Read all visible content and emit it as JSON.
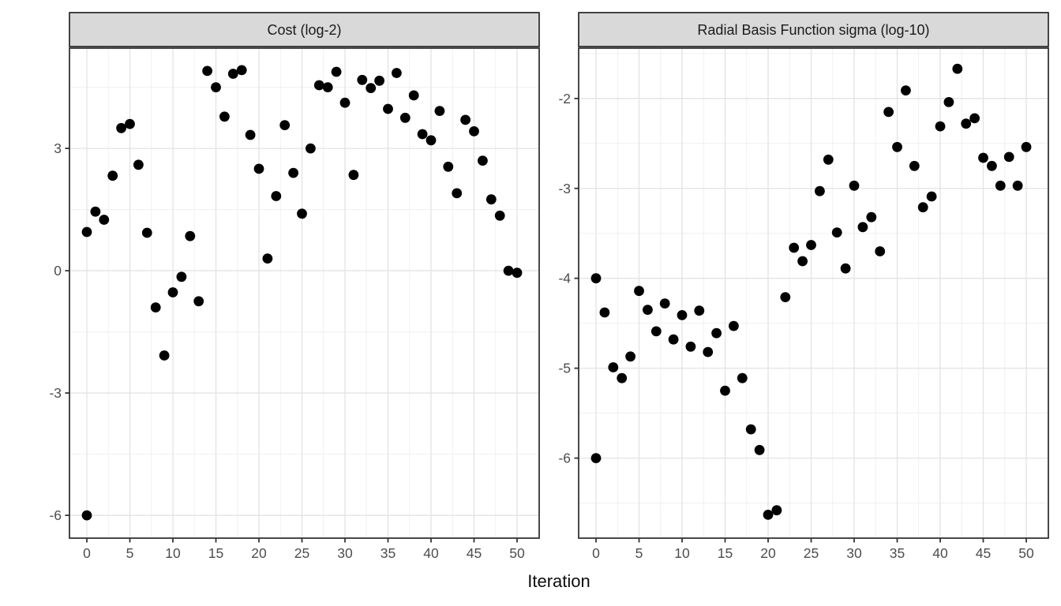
{
  "figure": {
    "xlabel": "Iteration",
    "background": "#ffffff",
    "strip_fill": "#d9d9d9",
    "strip_border": "#1a1a1a",
    "panel_background": "#ffffff",
    "panel_border": "#343434",
    "grid_major_color": "#e3e3e3",
    "grid_minor_color": "#f0f0f0",
    "point_color": "#000000",
    "tick_color": "#333333",
    "tick_label_color": "#4d4d4d",
    "strip_text_color": "#1a1a1a",
    "axis_title_color": "#0d0d0d"
  },
  "chart_data": [
    {
      "type": "scatter",
      "title": "Cost (log-2)",
      "xlabel": "Iteration",
      "ylabel": "",
      "legend": "none",
      "grid": true,
      "x_ticks": [
        0,
        5,
        10,
        15,
        20,
        25,
        30,
        35,
        40,
        45,
        50
      ],
      "y_ticks": [
        3,
        0,
        -3,
        -6
      ],
      "xlim": [
        -2.02,
        52.57
      ],
      "ylim": [
        -6.56,
        5.46
      ],
      "points": [
        [
          0,
          0.95
        ],
        [
          0,
          -6.0
        ],
        [
          1,
          1.45
        ],
        [
          2,
          1.25
        ],
        [
          3,
          2.33
        ],
        [
          4,
          3.5
        ],
        [
          5,
          3.6
        ],
        [
          6,
          2.6
        ],
        [
          7,
          0.93
        ],
        [
          8,
          -0.9
        ],
        [
          9,
          -2.08
        ],
        [
          10,
          -0.53
        ],
        [
          11,
          -0.15
        ],
        [
          12,
          0.85
        ],
        [
          13,
          -0.75
        ],
        [
          14,
          4.9
        ],
        [
          15,
          4.5
        ],
        [
          16,
          3.78
        ],
        [
          17,
          4.83
        ],
        [
          18,
          4.92
        ],
        [
          19,
          3.33
        ],
        [
          20,
          2.5
        ],
        [
          21,
          0.3
        ],
        [
          22,
          1.83
        ],
        [
          23,
          3.57
        ],
        [
          24,
          2.4
        ],
        [
          25,
          1.4
        ],
        [
          26,
          3.0
        ],
        [
          27,
          4.55
        ],
        [
          28,
          4.5
        ],
        [
          29,
          4.88
        ],
        [
          30,
          4.12
        ],
        [
          31,
          2.35
        ],
        [
          32,
          4.68
        ],
        [
          33,
          4.48
        ],
        [
          34,
          4.66
        ],
        [
          35,
          3.97
        ],
        [
          36,
          4.85
        ],
        [
          37,
          3.75
        ],
        [
          38,
          4.3
        ],
        [
          39,
          3.35
        ],
        [
          40,
          3.2
        ],
        [
          41,
          3.92
        ],
        [
          42,
          2.55
        ],
        [
          43,
          1.9
        ],
        [
          44,
          3.7
        ],
        [
          45,
          3.42
        ],
        [
          46,
          2.7
        ],
        [
          47,
          1.75
        ],
        [
          48,
          1.35
        ],
        [
          49,
          0.0
        ],
        [
          50,
          -0.05
        ]
      ]
    },
    {
      "type": "scatter",
      "title": "Radial Basis Function sigma (log-10)",
      "xlabel": "Iteration",
      "ylabel": "",
      "legend": "none",
      "grid": true,
      "x_ticks": [
        0,
        5,
        10,
        15,
        20,
        25,
        30,
        35,
        40,
        45,
        50
      ],
      "y_ticks": [
        -2,
        -3,
        -4,
        -5,
        -6
      ],
      "xlim": [
        -2.02,
        52.57
      ],
      "ylim": [
        -6.89,
        -1.44
      ],
      "points": [
        [
          0,
          -4.0
        ],
        [
          0,
          -6.0
        ],
        [
          1,
          -4.38
        ],
        [
          2,
          -4.99
        ],
        [
          3,
          -5.11
        ],
        [
          4,
          -4.87
        ],
        [
          5,
          -4.14
        ],
        [
          6,
          -4.35
        ],
        [
          7,
          -4.59
        ],
        [
          8,
          -4.28
        ],
        [
          9,
          -4.68
        ],
        [
          10,
          -4.41
        ],
        [
          11,
          -4.76
        ],
        [
          12,
          -4.36
        ],
        [
          13,
          -4.82
        ],
        [
          14,
          -4.61
        ],
        [
          15,
          -5.25
        ],
        [
          16,
          -4.53
        ],
        [
          17,
          -5.11
        ],
        [
          18,
          -5.68
        ],
        [
          19,
          -5.91
        ],
        [
          20,
          -6.63
        ],
        [
          21,
          -6.58
        ],
        [
          22,
          -4.21
        ],
        [
          23,
          -3.66
        ],
        [
          24,
          -3.81
        ],
        [
          25,
          -3.63
        ],
        [
          26,
          -3.03
        ],
        [
          27,
          -2.68
        ],
        [
          28,
          -3.49
        ],
        [
          29,
          -3.89
        ],
        [
          30,
          -2.97
        ],
        [
          31,
          -3.43
        ],
        [
          32,
          -3.32
        ],
        [
          33,
          -3.7
        ],
        [
          34,
          -2.15
        ],
        [
          35,
          -2.54
        ],
        [
          36,
          -1.91
        ],
        [
          37,
          -2.75
        ],
        [
          38,
          -3.21
        ],
        [
          39,
          -3.09
        ],
        [
          40,
          -2.31
        ],
        [
          41,
          -2.04
        ],
        [
          42,
          -1.67
        ],
        [
          43,
          -2.28
        ],
        [
          44,
          -2.22
        ],
        [
          45,
          -2.66
        ],
        [
          46,
          -2.75
        ],
        [
          47,
          -2.97
        ],
        [
          48,
          -2.65
        ],
        [
          49,
          -2.97
        ],
        [
          50,
          -2.54
        ]
      ]
    }
  ]
}
